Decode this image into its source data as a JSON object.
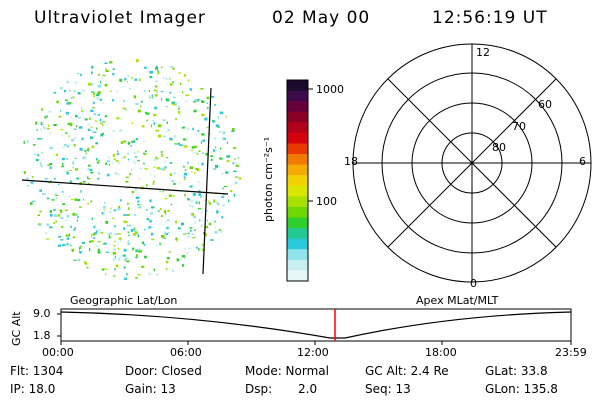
{
  "header": {
    "instrument": "Ultraviolet Imager",
    "date": "02 May 00",
    "time": "12:56:19 UT"
  },
  "colorbar": {
    "label": "photon cm⁻²s⁻¹",
    "ticks": [
      "1000",
      "100"
    ],
    "colors": [
      "#1a0a2e",
      "#3d0a4a",
      "#66003d",
      "#8a0022",
      "#b3001a",
      "#d4000e",
      "#e83a00",
      "#f07a00",
      "#f5aa00",
      "#f2d200",
      "#d8e600",
      "#a8e000",
      "#6fd700",
      "#2fcf2f",
      "#22c995",
      "#2ac9d9",
      "#8fe3ea",
      "#c8f0f0",
      "#e6f7f7"
    ]
  },
  "polar_plot": {
    "mlt_labels": {
      "top": "12",
      "left": "18",
      "right": "6",
      "bottom": "0"
    },
    "lat_labels": [
      "60",
      "70",
      "80"
    ]
  },
  "globe_label": "Geographic Lat/Lon",
  "polar_label": "Apex MLat/MLT",
  "timeline": {
    "ylabel": "GC Alt",
    "y_ticks": [
      "9.0",
      "1.8"
    ],
    "x_ticks": [
      "00:00",
      "06:00",
      "12:00",
      "18:00",
      "23:59"
    ],
    "marker_time": "12:56",
    "marker_color": "#ff0000"
  },
  "info": {
    "row1": [
      "Flt: 1304",
      "Door: Closed",
      "Mode: Normal",
      "GC Alt: 2.4 Re",
      "GLat:  33.8"
    ],
    "row2": [
      "IP: 18.0",
      "Gain: 13",
      "Dsp:",
      "2.0",
      "Seq: 13",
      "GLon: 135.8"
    ]
  }
}
